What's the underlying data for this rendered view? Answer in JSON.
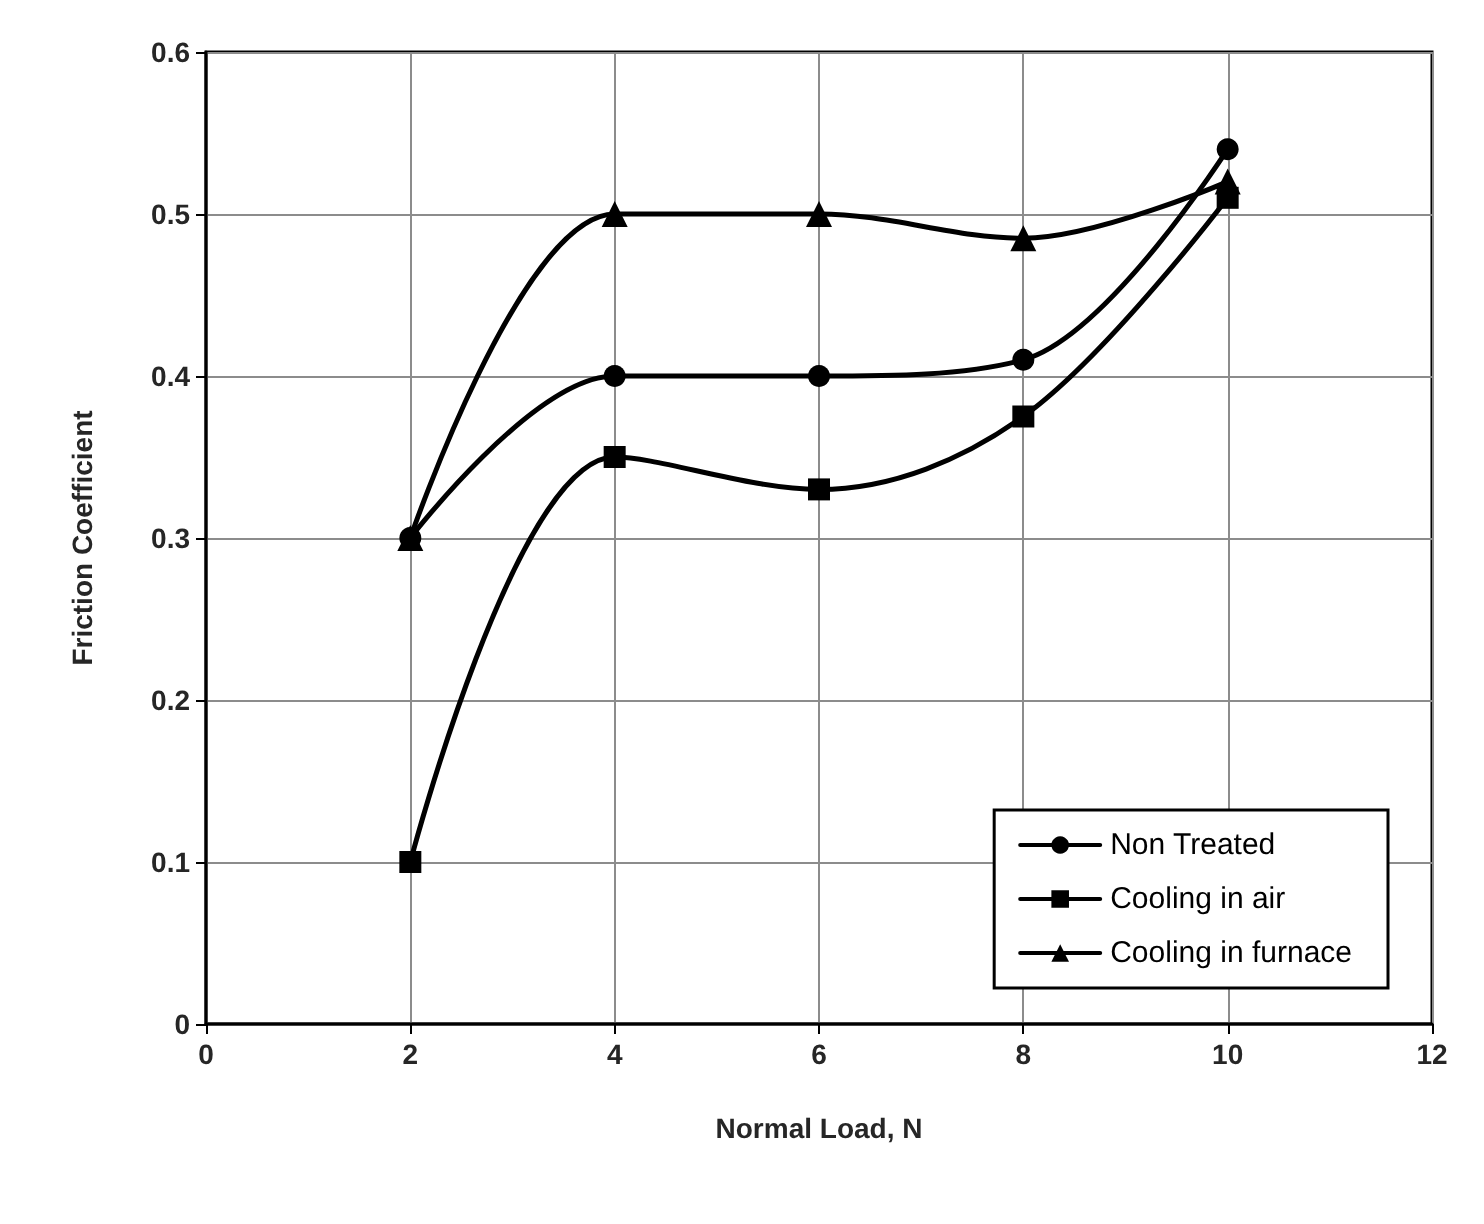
{
  "chart_data": {
    "type": "line",
    "xlabel": "Normal Load, N",
    "ylabel": "Friction Coefficient",
    "x": [
      2,
      4,
      6,
      8,
      10
    ],
    "series": [
      {
        "name": "Non Treated",
        "color": "#000000",
        "marker": "circle",
        "values": [
          0.3,
          0.4,
          0.4,
          0.41,
          0.54
        ]
      },
      {
        "name": "Cooling in air",
        "color": "#000000",
        "marker": "square",
        "values": [
          0.1,
          0.35,
          0.33,
          0.375,
          0.51
        ]
      },
      {
        "name": "Cooling in furnace",
        "color": "#000000",
        "marker": "triangle",
        "values": [
          0.3,
          0.5,
          0.5,
          0.485,
          0.52
        ]
      }
    ],
    "xlim": [
      0,
      12
    ],
    "xticks": [
      0,
      2,
      4,
      6,
      8,
      10,
      12
    ],
    "ylim": [
      0,
      0.6
    ],
    "yticks": [
      0,
      0.1,
      0.2,
      0.3,
      0.4,
      0.5,
      0.6
    ],
    "grid": true,
    "legend": "bottom right",
    "line_style": "solid"
  }
}
